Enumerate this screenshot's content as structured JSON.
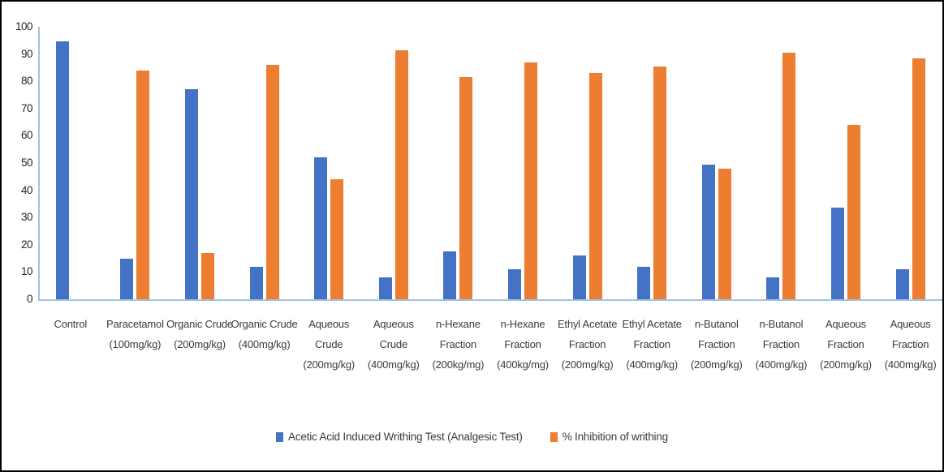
{
  "chart_data": {
    "type": "bar",
    "categories": [
      "Control",
      "Paracetamol (100mg/kg)",
      "Organic Crude (200mg/kg)",
      "Organic Crude (400mg/kg)",
      "Aqueous Crude (200mg/kg)",
      "Aqueous Crude (400mg/kg)",
      "n-Hexane Fraction (200kg/mg)",
      "n-Hexane Fraction (400kg/mg)",
      "Ethyl Acetate Fraction (200mg/kg)",
      "Ethyl Acetate Fraction (400mg/kg)",
      "n-Butanol Fraction (200mg/kg)",
      "n-Butanol Fraction (400mg/kg)",
      "Aqueous Fraction (200mg/kg)",
      "Aqueous Fraction (400mg/kg)"
    ],
    "series": [
      {
        "name": "Acetic Acid Induced Writhing Test (Analgesic Test)",
        "color": "#4472C4",
        "values": [
          94.5,
          15,
          77,
          12,
          52,
          8,
          17.5,
          11,
          16,
          12,
          49.5,
          8,
          33.5,
          11
        ]
      },
      {
        "name": "% Inhibition of writhing",
        "color": "#ED7D31",
        "values": [
          0,
          84,
          17,
          86,
          44,
          91.5,
          81.5,
          87,
          83,
          85.5,
          48,
          90.5,
          64,
          88.5
        ]
      }
    ],
    "title": "",
    "xlabel": "",
    "ylabel": "",
    "ylim": [
      0,
      100
    ],
    "yticks": [
      0,
      10,
      20,
      30,
      40,
      50,
      60,
      70,
      80,
      90,
      100
    ],
    "grid": false,
    "legend_position": "bottom",
    "axis_color": "#9DC3E6",
    "tick_text_color": "#262626",
    "label_text_color": "#3b3b3b"
  }
}
